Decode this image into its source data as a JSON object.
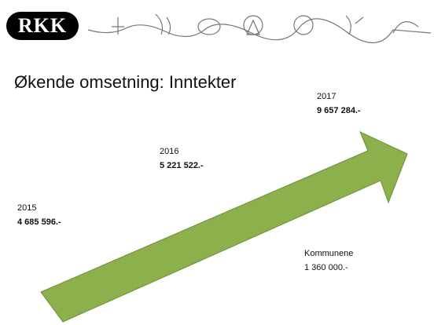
{
  "logo": "RKK",
  "title": "Økende omsetning: Inntekter",
  "entries": [
    {
      "label": "2015",
      "amount": "4 685 596.-"
    },
    {
      "label": "2016",
      "amount": "5 221 522.-"
    },
    {
      "label": "2017",
      "amount": "9 657 284.-"
    }
  ],
  "note": {
    "label": "Kommunene",
    "amount": "1 360 000.-"
  }
}
